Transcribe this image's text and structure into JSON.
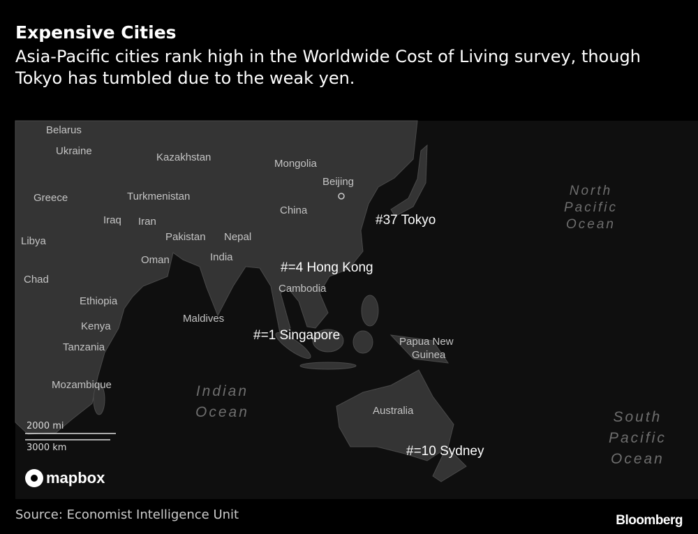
{
  "header": {
    "title": "Expensive Cities",
    "subtitle": "Asia-Pacific cities rank high in the Worldwide Cost of Living survey, though Tokyo has tumbled due to the weak yen."
  },
  "map": {
    "places": [
      "Belarus",
      "Ukraine",
      "Kazakhstan",
      "Mongolia",
      "Beijing",
      "Greece",
      "Turkmenistan",
      "China",
      "Iraq",
      "Iran",
      "Libya",
      "Pakistan",
      "Nepal",
      "India",
      "Oman",
      "Chad",
      "Cambodia",
      "Ethiopia",
      "Maldives",
      "Kenya",
      "Tanzania",
      "Papua New",
      "Guinea",
      "Mozambique",
      "Australia"
    ],
    "oceans": [
      [
        "North",
        "Pacific",
        "Ocean"
      ],
      [
        "Indian",
        "Ocean"
      ],
      [
        "South",
        "Pacific",
        "Ocean"
      ]
    ],
    "cities": [
      "#37 Tokyo",
      "#=4 Hong Kong",
      "#=1 Singapore",
      "#=10 Sydney"
    ],
    "scale": {
      "miles": "2000 mi",
      "km": "3000 km"
    },
    "attribution": "mapbox"
  },
  "footer": {
    "source": "Source: Economist Intelligence Unit",
    "brand": "Bloomberg"
  }
}
